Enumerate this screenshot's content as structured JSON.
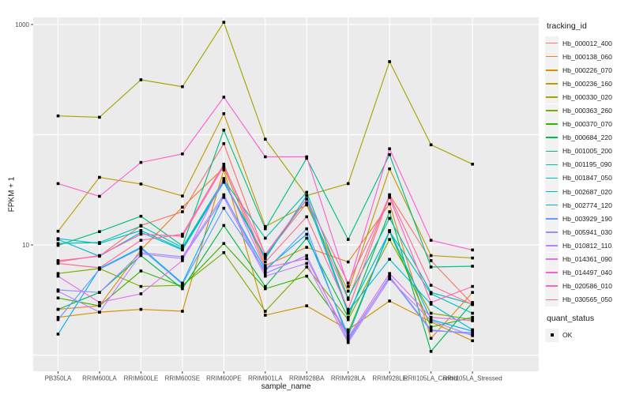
{
  "figure": {
    "background": "#FFFFFF",
    "panel_background": "#EBEBEB",
    "gridline_color": "#FFFFFF",
    "tick_color": "#333333",
    "tick_label_color": "#4D4D4D"
  },
  "axes": {
    "y": {
      "title": "FPKM + 1",
      "scale": "log10",
      "tick_labels": [
        "1000",
        "10"
      ],
      "tick_values": [
        1000,
        10
      ],
      "gridline_values": [
        1,
        10,
        100,
        1000
      ]
    },
    "x": {
      "title": "sample_name"
    }
  },
  "legend": {
    "tracking_title": "tracking_id",
    "quant_title": "quant_status",
    "quant_items": [
      {
        "label": "OK",
        "marker": "black-square"
      }
    ]
  },
  "chart_data": {
    "type": "line",
    "title": "",
    "xlabel": "sample_name",
    "ylabel": "FPKM + 1",
    "y_scale": "log10",
    "ylim": [
      1,
      1200
    ],
    "grid": true,
    "legend_position": "right",
    "point_marker": "black-square",
    "quant_status": "OK",
    "categories": [
      "PB350LA",
      "RRIM600LA",
      "RRIM600LE",
      "RRIM600SE",
      "RRIM600PE",
      "RRIM901LA",
      "RRIM928BA",
      "RRIM928LA",
      "RRIM928LE",
      "RRII105LA_Control",
      "RRII105LA_Stressed"
    ],
    "series": [
      {
        "name": "Hb_000012_400",
        "color": "#F8766D",
        "values": [
          7.2,
          7.9,
          15,
          20,
          83,
          8.0,
          24,
          3.2,
          28.5,
          7.2,
          2.9
        ]
      },
      {
        "name": "Hb_000138_060",
        "color": "#E88526",
        "values": [
          2.6,
          2.8,
          9.0,
          22,
          50,
          6.5,
          9.5,
          7.0,
          23.5,
          1.42,
          3.7
        ]
      },
      {
        "name": "Hb_000226_070",
        "color": "#D39200",
        "values": [
          2.2,
          2.45,
          2.6,
          2.5,
          48,
          2.3,
          2.8,
          1.7,
          3.1,
          2.0,
          1.35
        ]
      },
      {
        "name": "Hb_000236_160",
        "color": "#C09B00",
        "values": [
          13.3,
          41,
          35.7,
          27.8,
          155,
          14.7,
          23,
          3.8,
          49,
          8.0,
          7.6
        ]
      },
      {
        "name": "Hb_000330_020",
        "color": "#A3A500",
        "values": [
          148,
          144,
          315,
          273,
          1047,
          91,
          28,
          36,
          460,
          81,
          54
        ]
      },
      {
        "name": "Hb_000363_260",
        "color": "#7CAE00",
        "values": [
          5.5,
          6.1,
          4.2,
          4.3,
          8.5,
          2.5,
          6.3,
          2.1,
          11.2,
          2.4,
          2.1
        ]
      },
      {
        "name": "Hb_000370_070",
        "color": "#39B600",
        "values": [
          3.3,
          2.8,
          5.8,
          4.2,
          10.3,
          4.0,
          5.2,
          1.6,
          13.2,
          1.8,
          2.2
        ]
      },
      {
        "name": "Hb_000684_220",
        "color": "#00BB4E",
        "values": [
          2.6,
          3.7,
          8.0,
          4.0,
          15,
          4.2,
          11.5,
          2.2,
          20,
          1.08,
          3.0
        ]
      },
      {
        "name": "Hb_001005_200",
        "color": "#00C087",
        "values": [
          9.9,
          13.2,
          18.2,
          9.8,
          110,
          14.0,
          61,
          11.2,
          66,
          6.3,
          6.4
        ]
      },
      {
        "name": "Hb_001195_090",
        "color": "#00C0AF",
        "values": [
          10.3,
          10.5,
          14.8,
          9.5,
          39,
          11.5,
          30,
          3.3,
          17.4,
          3.7,
          2.9
        ]
      },
      {
        "name": "Hb_001847_050",
        "color": "#00BFC4",
        "values": [
          11.4,
          10.3,
          13.5,
          9.2,
          38,
          7.8,
          26,
          2.4,
          13.2,
          3.6,
          2.4
        ]
      },
      {
        "name": "Hb_002687_020",
        "color": "#00BCD8",
        "values": [
          11.2,
          7.9,
          13.0,
          9.0,
          37,
          7.5,
          28,
          2.5,
          7.4,
          2.9,
          1.7
        ]
      },
      {
        "name": "Hb_002774_120",
        "color": "#00B0F6",
        "values": [
          1.55,
          6.1,
          9.5,
          4.5,
          28,
          6.0,
          12.5,
          1.5,
          13.5,
          2.1,
          1.65
        ]
      },
      {
        "name": "Hb_003929_190",
        "color": "#619CFF",
        "values": [
          2.1,
          6.0,
          9.3,
          4.4,
          21.5,
          5.8,
          14,
          1.4,
          5.1,
          1.66,
          1.6
        ]
      },
      {
        "name": "Hb_005941_030",
        "color": "#9590FF",
        "values": [
          3.9,
          3.7,
          8.5,
          7.8,
          28.5,
          5.5,
          8.0,
          1.35,
          5.2,
          1.7,
          1.55
        ]
      },
      {
        "name": "Hb_010812_110",
        "color": "#B983FF",
        "values": [
          3.8,
          2.45,
          8.3,
          7.5,
          27,
          5.2,
          6.8,
          1.3,
          4.9,
          2.05,
          1.5
        ]
      },
      {
        "name": "Hb_014361_090",
        "color": "#E76BF3",
        "values": [
          5.2,
          3.0,
          3.6,
          7.2,
          40,
          6.2,
          7.5,
          1.45,
          5.5,
          2.2,
          2.05
        ]
      },
      {
        "name": "Hb_014497_040",
        "color": "#FD61D1",
        "values": [
          36,
          27.6,
          56,
          67,
          219,
          63,
          63,
          4.2,
          74.5,
          11,
          9.0
        ]
      },
      {
        "name": "Hb_020586_010",
        "color": "#FF62BC",
        "values": [
          7.0,
          8.0,
          12.5,
          12.0,
          52,
          8.2,
          26,
          4.5,
          27,
          3.0,
          4.2
        ]
      },
      {
        "name": "Hb_030565_050",
        "color": "#FF6A98",
        "values": [
          6.8,
          6.2,
          11.0,
          12.5,
          54,
          7.0,
          18,
          2.6,
          28,
          4.3,
          2.87
        ]
      }
    ]
  }
}
